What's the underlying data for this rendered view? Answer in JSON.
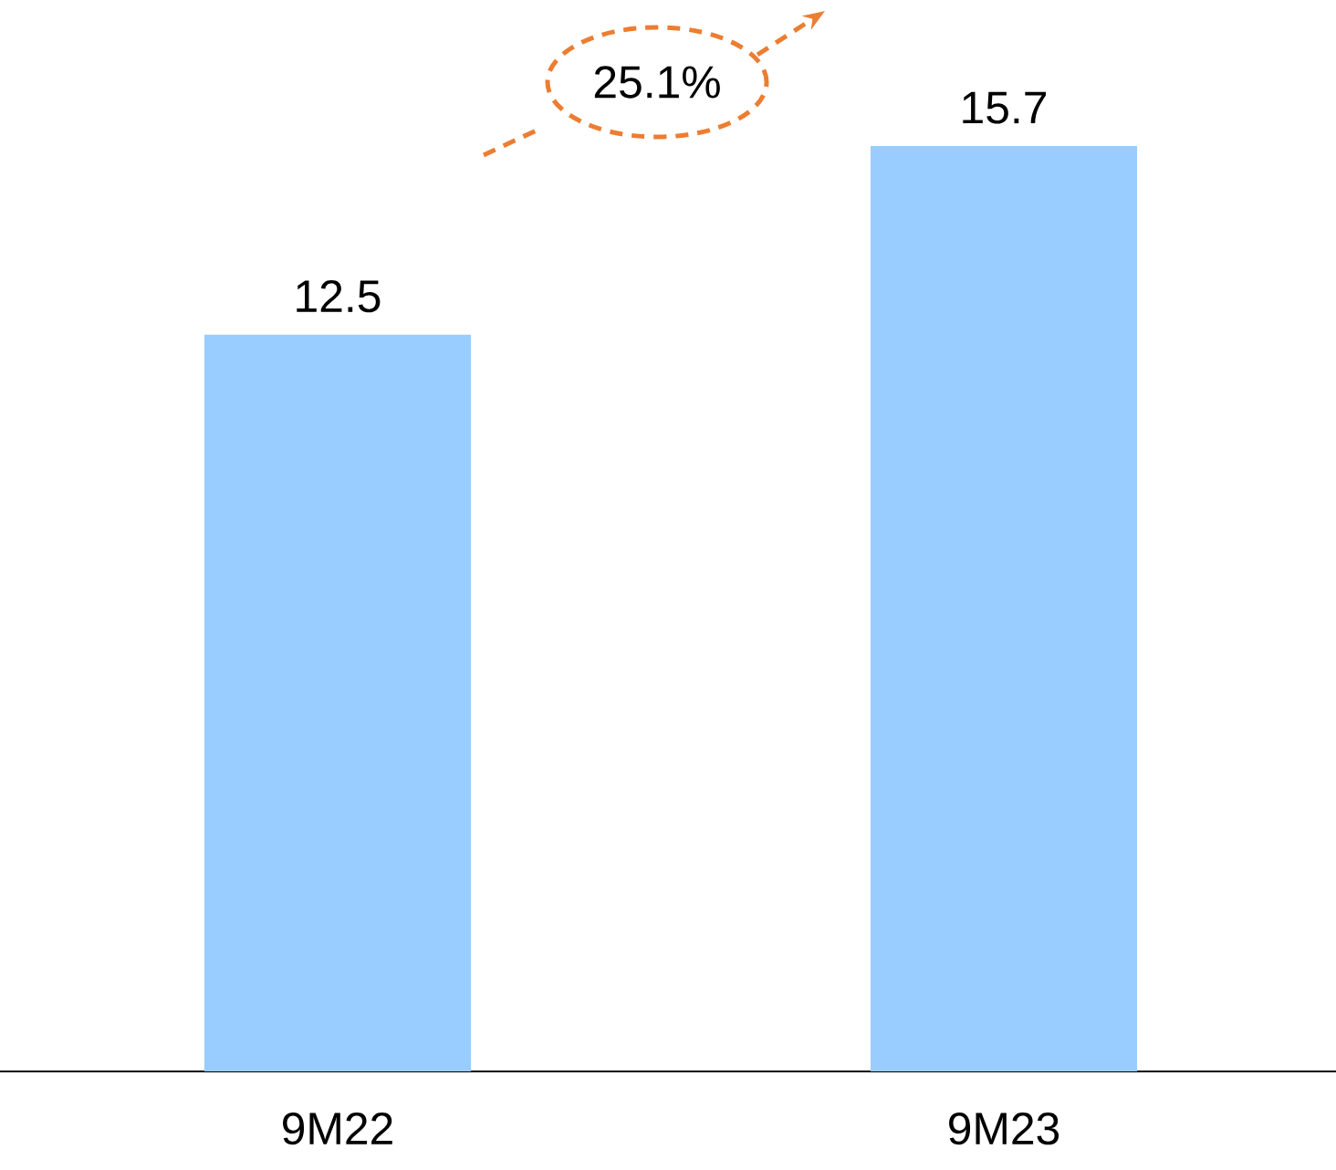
{
  "chart_data": {
    "type": "bar",
    "categories": [
      "9M22",
      "9M23"
    ],
    "values": [
      12.5,
      15.7
    ],
    "color": "#99ccff",
    "data_labels": true,
    "annotations": [
      "25.1%"
    ]
  }
}
